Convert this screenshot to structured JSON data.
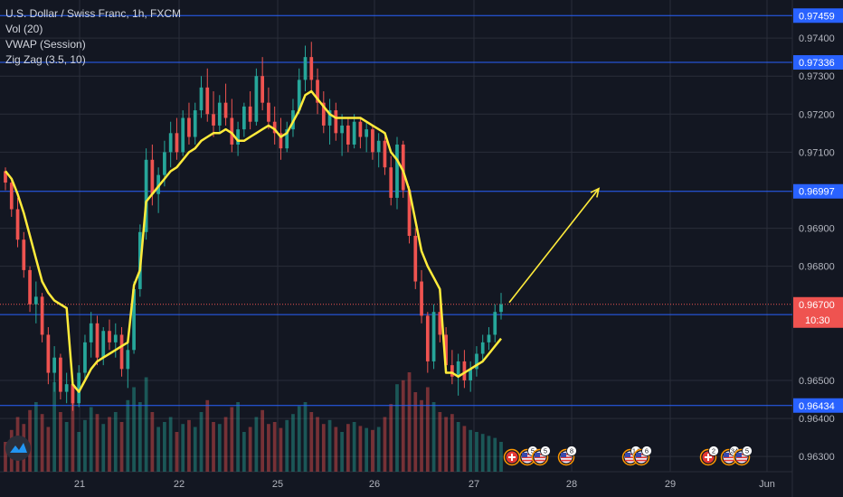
{
  "legend": {
    "title": "U.S. Dollar / Swiss Franc, 1h, FXCM",
    "indicators": [
      "Vol (20)",
      "VWAP (Session)",
      "Zig Zag (3.5, 10)"
    ]
  },
  "colors": {
    "background": "#131722",
    "grid": "#2a2e39",
    "up": "#26a69a",
    "down": "#ef5350",
    "vwap": "#ffeb3b",
    "hline": "#2962ff",
    "current_price": "#ef5350",
    "axis_text": "#b2b5be"
  },
  "price_axis": {
    "ticks": [
      "0.97400",
      "0.97300",
      "0.97200",
      "0.97100",
      "0.96900",
      "0.96800",
      "0.96500",
      "0.96400",
      "0.96300"
    ]
  },
  "time_axis": {
    "ticks": [
      "21",
      "22",
      "25",
      "26",
      "27",
      "28",
      "29",
      "Jun"
    ]
  },
  "horizontal_lines": [
    {
      "price": "0.97459"
    },
    {
      "price": "0.97336"
    },
    {
      "price": "0.96997"
    },
    {
      "price": "0.96673"
    },
    {
      "price": "0.96434"
    }
  ],
  "current_price": {
    "price": "0.96700",
    "countdown": "10:30"
  },
  "event_markers": [
    {
      "icon": "swiss-flag-icon",
      "label": ""
    },
    {
      "icon": "us-flag-icon",
      "label": "5"
    },
    {
      "icon": "us-flag-icon",
      "label": "5"
    },
    {
      "icon": "us-flag-icon",
      "label": "8"
    },
    {
      "icon": "us-flag-icon",
      "label": "14"
    },
    {
      "icon": "us-flag-icon",
      "label": "6"
    },
    {
      "icon": "swiss-flag-icon",
      "label": "2"
    },
    {
      "icon": "us-flag-icon",
      "label": "34"
    },
    {
      "icon": "us-flag-icon",
      "label": "5"
    }
  ],
  "chart_data": {
    "type": "candlestick",
    "symbol": "USDCHF",
    "timeframe": "1h",
    "y_range": [
      0.9626,
      0.975
    ],
    "candles": [
      [
        0.9705,
        0.9706,
        0.97,
        0.9702
      ],
      [
        0.9702,
        0.9703,
        0.9693,
        0.9695
      ],
      [
        0.9695,
        0.9698,
        0.9685,
        0.9687
      ],
      [
        0.9687,
        0.9689,
        0.9677,
        0.9679
      ],
      [
        0.9679,
        0.968,
        0.9668,
        0.967
      ],
      [
        0.967,
        0.9676,
        0.9665,
        0.9672
      ],
      [
        0.9672,
        0.9673,
        0.966,
        0.9662
      ],
      [
        0.9662,
        0.9664,
        0.9649,
        0.9652
      ],
      [
        0.9652,
        0.9659,
        0.9647,
        0.9656
      ],
      [
        0.9656,
        0.9657,
        0.9645,
        0.9647
      ],
      [
        0.9647,
        0.9652,
        0.9644,
        0.9649
      ],
      [
        0.9649,
        0.965,
        0.9642,
        0.9644
      ],
      [
        0.9644,
        0.9654,
        0.9643,
        0.9652
      ],
      [
        0.9652,
        0.9662,
        0.965,
        0.966
      ],
      [
        0.966,
        0.9668,
        0.9656,
        0.9665
      ],
      [
        0.9665,
        0.9667,
        0.9654,
        0.9656
      ],
      [
        0.9656,
        0.9664,
        0.9654,
        0.9663
      ],
      [
        0.9663,
        0.9666,
        0.9658,
        0.966
      ],
      [
        0.966,
        0.9665,
        0.9656,
        0.9662
      ],
      [
        0.9662,
        0.9664,
        0.9651,
        0.9653
      ],
      [
        0.9653,
        0.966,
        0.9648,
        0.9658
      ],
      [
        0.9658,
        0.9676,
        0.9657,
        0.9674
      ],
      [
        0.9674,
        0.9691,
        0.9672,
        0.9689
      ],
      [
        0.9689,
        0.9711,
        0.9687,
        0.9708
      ],
      [
        0.9708,
        0.9712,
        0.9696,
        0.9699
      ],
      [
        0.9699,
        0.9706,
        0.9694,
        0.9704
      ],
      [
        0.9704,
        0.9713,
        0.9701,
        0.971
      ],
      [
        0.971,
        0.9718,
        0.9706,
        0.9715
      ],
      [
        0.9715,
        0.9719,
        0.9708,
        0.971
      ],
      [
        0.971,
        0.9721,
        0.9709,
        0.9719
      ],
      [
        0.9719,
        0.9723,
        0.9712,
        0.9714
      ],
      [
        0.9714,
        0.9723,
        0.9712,
        0.9721
      ],
      [
        0.9721,
        0.973,
        0.9719,
        0.9727
      ],
      [
        0.9727,
        0.9732,
        0.9718,
        0.972
      ],
      [
        0.972,
        0.9726,
        0.9714,
        0.9717
      ],
      [
        0.9717,
        0.9725,
        0.9715,
        0.9723
      ],
      [
        0.9723,
        0.9728,
        0.9717,
        0.9719
      ],
      [
        0.9719,
        0.9724,
        0.971,
        0.9712
      ],
      [
        0.9712,
        0.9718,
        0.9709,
        0.9716
      ],
      [
        0.9716,
        0.9723,
        0.9714,
        0.9722
      ],
      [
        0.9722,
        0.9726,
        0.9716,
        0.9718
      ],
      [
        0.9718,
        0.9732,
        0.9717,
        0.973
      ],
      [
        0.973,
        0.9735,
        0.9721,
        0.9723
      ],
      [
        0.9723,
        0.9727,
        0.9716,
        0.9718
      ],
      [
        0.9718,
        0.9722,
        0.9712,
        0.9715
      ],
      [
        0.9715,
        0.9719,
        0.9708,
        0.9711
      ],
      [
        0.9711,
        0.9718,
        0.971,
        0.9716
      ],
      [
        0.9716,
        0.9724,
        0.9714,
        0.9721
      ],
      [
        0.9721,
        0.9732,
        0.972,
        0.9729
      ],
      [
        0.9729,
        0.9738,
        0.9726,
        0.9735
      ],
      [
        0.9735,
        0.9739,
        0.9726,
        0.9729
      ],
      [
        0.9729,
        0.9732,
        0.972,
        0.9723
      ],
      [
        0.9723,
        0.9726,
        0.9715,
        0.9717
      ],
      [
        0.9717,
        0.9724,
        0.9712,
        0.9721
      ],
      [
        0.9721,
        0.9723,
        0.9713,
        0.9715
      ],
      [
        0.9715,
        0.972,
        0.9709,
        0.9717
      ],
      [
        0.9717,
        0.9719,
        0.971,
        0.9712
      ],
      [
        0.9712,
        0.972,
        0.9711,
        0.9718
      ],
      [
        0.9718,
        0.9719,
        0.9711,
        0.9714
      ],
      [
        0.9714,
        0.9718,
        0.971,
        0.9716
      ],
      [
        0.9716,
        0.9717,
        0.9708,
        0.971
      ],
      [
        0.971,
        0.9715,
        0.9706,
        0.9713
      ],
      [
        0.9713,
        0.9714,
        0.9704,
        0.9706
      ],
      [
        0.9706,
        0.9709,
        0.9696,
        0.9698
      ],
      [
        0.9698,
        0.9714,
        0.9695,
        0.9712
      ],
      [
        0.9712,
        0.9713,
        0.9698,
        0.97
      ],
      [
        0.97,
        0.9701,
        0.9686,
        0.9688
      ],
      [
        0.9688,
        0.969,
        0.9674,
        0.9676
      ],
      [
        0.9676,
        0.9679,
        0.9665,
        0.9667
      ],
      [
        0.9667,
        0.9668,
        0.9652,
        0.9655
      ],
      [
        0.9655,
        0.967,
        0.9653,
        0.9668
      ],
      [
        0.9668,
        0.9672,
        0.966,
        0.9662
      ],
      [
        0.9662,
        0.9664,
        0.9652,
        0.9654
      ],
      [
        0.9654,
        0.9658,
        0.9649,
        0.9651
      ],
      [
        0.9651,
        0.9657,
        0.9646,
        0.9655
      ],
      [
        0.9655,
        0.9658,
        0.9648,
        0.965
      ],
      [
        0.965,
        0.9655,
        0.9647,
        0.9653
      ],
      [
        0.9653,
        0.9659,
        0.9651,
        0.9657
      ],
      [
        0.9657,
        0.9662,
        0.9655,
        0.966
      ],
      [
        0.966,
        0.9664,
        0.9658,
        0.9662
      ],
      [
        0.9662,
        0.967,
        0.966,
        0.9668
      ],
      [
        0.9668,
        0.9673,
        0.9666,
        0.967
      ]
    ],
    "vwap": [
      0.9705,
      0.9703,
      0.9699,
      0.9694,
      0.9688,
      0.9682,
      0.9676,
      0.9673,
      0.9671,
      0.967,
      0.9669,
      0.9649,
      0.9647,
      0.965,
      0.9653,
      0.9655,
      0.9656,
      0.9657,
      0.9658,
      0.9659,
      0.966,
      0.9675,
      0.9679,
      0.9697,
      0.9699,
      0.9701,
      0.9703,
      0.9705,
      0.9706,
      0.9708,
      0.971,
      0.9711,
      0.9713,
      0.9714,
      0.9715,
      0.9715,
      0.9716,
      0.9715,
      0.9713,
      0.9713,
      0.9714,
      0.9715,
      0.9716,
      0.9717,
      0.9716,
      0.9714,
      0.9715,
      0.9718,
      0.9721,
      0.9725,
      0.9726,
      0.9724,
      0.9722,
      0.972,
      0.9719,
      0.9719,
      0.9719,
      0.9719,
      0.9719,
      0.9718,
      0.9717,
      0.9716,
      0.9715,
      0.971,
      0.9708,
      0.9705,
      0.97,
      0.9692,
      0.9684,
      0.968,
      0.9677,
      0.9674,
      0.9652,
      0.9652,
      0.9651,
      0.9652,
      0.9653,
      0.9654,
      0.9655,
      0.9657,
      0.9659,
      0.9661
    ],
    "volume": [
      30,
      42,
      55,
      48,
      62,
      70,
      58,
      45,
      90,
      60,
      50,
      85,
      40,
      52,
      65,
      58,
      48,
      55,
      60,
      50,
      72,
      85,
      70,
      95,
      60,
      45,
      50,
      55,
      40,
      48,
      52,
      45,
      60,
      72,
      50,
      48,
      55,
      65,
      70,
      40,
      45,
      55,
      62,
      48,
      50,
      44,
      52,
      58,
      66,
      70,
      60,
      55,
      48,
      52,
      45,
      40,
      48,
      50,
      46,
      44,
      42,
      45,
      55,
      68,
      88,
      92,
      100,
      80,
      72,
      85,
      70,
      60,
      55,
      58,
      50,
      46,
      42,
      40,
      38,
      36,
      34,
      30
    ],
    "projection_arrow": {
      "from_price": 0.967,
      "to_price": 0.9699
    }
  }
}
